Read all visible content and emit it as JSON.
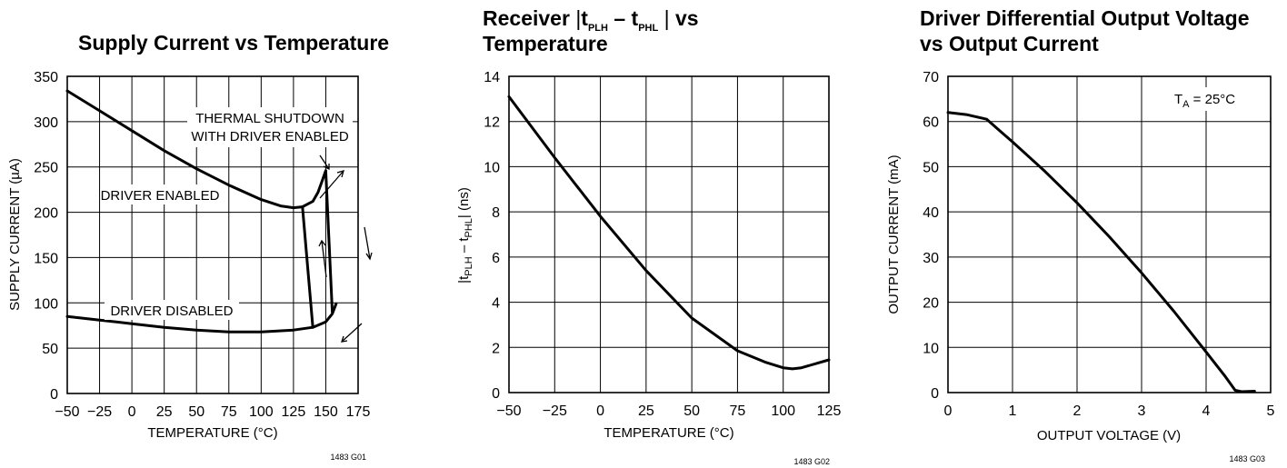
{
  "chart_data": [
    {
      "type": "line",
      "title": "Supply Current vs Temperature",
      "xlabel": "TEMPERATURE (°C)",
      "ylabel": "SUPPLY CURRENT (µA)",
      "xlim": [
        -50,
        175
      ],
      "ylim": [
        0,
        350
      ],
      "x_ticks": [
        -50,
        -25,
        0,
        25,
        50,
        75,
        100,
        125,
        150,
        175
      ],
      "y_ticks": [
        0,
        50,
        100,
        150,
        200,
        250,
        300,
        350
      ],
      "grid": true,
      "series": [
        {
          "name": "DRIVER ENABLED",
          "x": [
            -50,
            -25,
            0,
            25,
            50,
            75,
            100,
            115,
            125,
            132
          ],
          "y": [
            334,
            312,
            290,
            268,
            248,
            230,
            214,
            207,
            205,
            206
          ]
        },
        {
          "name": "DRIVER DISABLED",
          "x": [
            -50,
            -25,
            0,
            25,
            50,
            75,
            100,
            125,
            140,
            150,
            155,
            158
          ],
          "y": [
            85,
            81,
            77,
            73,
            70,
            68,
            68,
            70,
            73,
            79,
            88,
            99
          ]
        },
        {
          "name": "THERMAL SHUTDOWN WITH DRIVER ENABLED",
          "x": [
            132,
            140,
            144,
            147,
            149,
            150,
            155
          ],
          "y": [
            206,
            212,
            222,
            234,
            242,
            246,
            90
          ]
        },
        {
          "name": "",
          "x": [
            132,
            140
          ],
          "y": [
            206,
            73
          ]
        }
      ],
      "annotations": [
        "THERMAL SHUTDOWN",
        "WITH DRIVER ENABLED",
        "DRIVER ENABLED",
        "DRIVER DISABLED"
      ],
      "code": "1483 G01"
    },
    {
      "type": "line",
      "title_parts": [
        "Receiver ",
        "t",
        "PLH",
        " – t",
        "PHL",
        " vs",
        "Temperature"
      ],
      "xlabel": "TEMPERATURE (°C)",
      "ylabel_parts": [
        "t",
        "PLH",
        " – t",
        "PHL",
        " (ns)"
      ],
      "xlim": [
        -50,
        125
      ],
      "ylim": [
        0,
        14
      ],
      "x_ticks": [
        -50,
        -25,
        0,
        25,
        50,
        75,
        100,
        125
      ],
      "y_ticks": [
        0,
        2,
        4,
        6,
        8,
        10,
        12,
        14
      ],
      "grid": true,
      "series": [
        {
          "name": "",
          "x": [
            -50,
            -25,
            0,
            25,
            50,
            75,
            90,
            100,
            105,
            110,
            125
          ],
          "y": [
            13.1,
            10.4,
            7.8,
            5.4,
            3.3,
            1.85,
            1.35,
            1.1,
            1.05,
            1.1,
            1.45
          ]
        }
      ],
      "code": "1483 G02"
    },
    {
      "type": "line",
      "title": "Driver Differential Output Voltage",
      "title2": "vs Output Current",
      "xlabel": "OUTPUT VOLTAGE (V)",
      "ylabel": "OUTPUT CURRENT (mA)",
      "xlim": [
        0,
        5
      ],
      "ylim": [
        0,
        70
      ],
      "x_ticks": [
        0,
        1,
        2,
        3,
        4,
        5
      ],
      "y_ticks": [
        0,
        10,
        20,
        30,
        40,
        50,
        60,
        70
      ],
      "grid": true,
      "series": [
        {
          "name": "",
          "x": [
            0,
            0.3,
            0.6,
            0.8,
            1.0,
            1.5,
            2.0,
            2.5,
            3.0,
            3.5,
            4.0,
            4.3,
            4.45,
            4.55,
            4.75
          ],
          "y": [
            62,
            61.5,
            60.5,
            58,
            55.5,
            49,
            42,
            34.5,
            26.5,
            18,
            9,
            3.5,
            0.5,
            0.2,
            0.3
          ]
        }
      ],
      "note_parts": [
        "T",
        "A",
        " = 25°C"
      ],
      "code": "1483 G03"
    }
  ]
}
